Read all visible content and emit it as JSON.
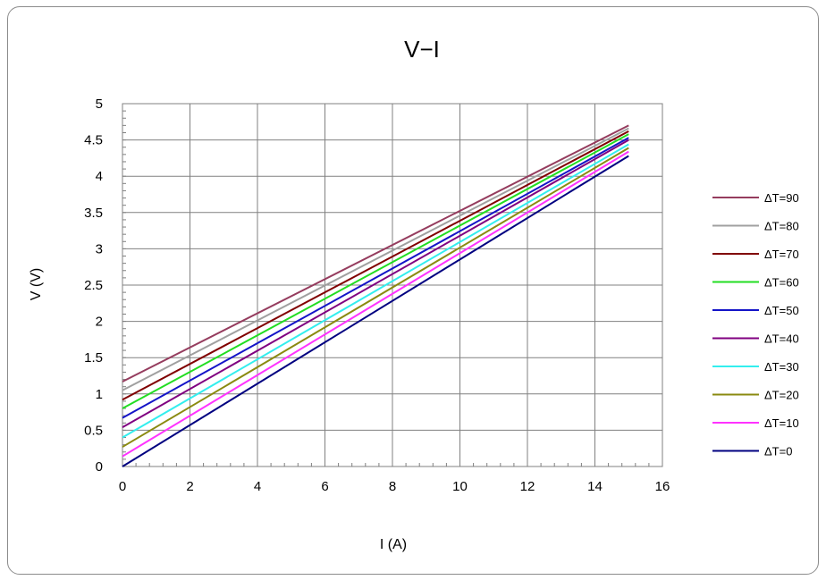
{
  "chart_data": {
    "type": "line",
    "title": "V−I",
    "xlabel": "I (A)",
    "ylabel": "V (V)",
    "xlim": [
      0,
      16
    ],
    "ylim": [
      0,
      5
    ],
    "x_ticks": [
      "0",
      "2",
      "4",
      "6",
      "8",
      "10",
      "12",
      "14",
      "16"
    ],
    "y_ticks": [
      "0",
      "0.5",
      "1",
      "1.5",
      "2",
      "2.5",
      "3",
      "3.5",
      "4",
      "4.5",
      "5"
    ],
    "grid": true,
    "legend_position": "right",
    "series": [
      {
        "name": "ΔT=90",
        "color": "#953c5e",
        "x": [
          0,
          15
        ],
        "y": [
          1.17,
          4.7
        ]
      },
      {
        "name": "ΔT=80",
        "color": "#a0a0a0",
        "x": [
          0,
          15
        ],
        "y": [
          1.05,
          4.66
        ]
      },
      {
        "name": "ΔT=70",
        "color": "#800000",
        "x": [
          0,
          15
        ],
        "y": [
          0.92,
          4.62
        ]
      },
      {
        "name": "ΔT=60",
        "color": "#22dd22",
        "x": [
          0,
          15
        ],
        "y": [
          0.8,
          4.58
        ]
      },
      {
        "name": "ΔT=50",
        "color": "#1414c8",
        "x": [
          0,
          15
        ],
        "y": [
          0.67,
          4.53
        ]
      },
      {
        "name": "ΔT=40",
        "color": "#800080",
        "x": [
          0,
          15
        ],
        "y": [
          0.54,
          4.5
        ]
      },
      {
        "name": "ΔT=30",
        "color": "#33eeee",
        "x": [
          0,
          15
        ],
        "y": [
          0.4,
          4.44
        ]
      },
      {
        "name": "ΔT=20",
        "color": "#8a8a10",
        "x": [
          0,
          15
        ],
        "y": [
          0.27,
          4.39
        ]
      },
      {
        "name": "ΔT=10",
        "color": "#ff33ff",
        "x": [
          0,
          15
        ],
        "y": [
          0.14,
          4.34
        ]
      },
      {
        "name": "ΔT=0",
        "color": "#000080",
        "x": [
          0,
          15
        ],
        "y": [
          0.0,
          4.28
        ]
      }
    ]
  }
}
